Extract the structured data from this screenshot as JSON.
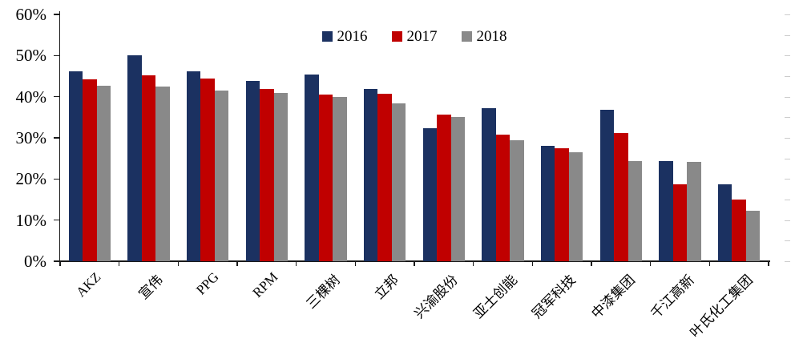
{
  "chart_data": {
    "type": "bar",
    "title": "",
    "xlabel": "",
    "ylabel": "",
    "categories": [
      "AKZ",
      "宣伟",
      "PPG",
      "RPM",
      "三棵树",
      "立邦",
      "兴渝股份",
      "亚士创能",
      "冠军科技",
      "中漆集团",
      "千江高新",
      "叶氏化工集团"
    ],
    "series": [
      {
        "name": "2016",
        "color": "#1B3161",
        "values": [
          46.1,
          50.0,
          46.2,
          43.9,
          45.4,
          41.9,
          32.3,
          37.2,
          28.1,
          36.8,
          24.4,
          18.7
        ]
      },
      {
        "name": "2017",
        "color": "#C00000",
        "values": [
          44.2,
          45.2,
          44.4,
          41.8,
          40.5,
          40.7,
          35.6,
          30.7,
          27.5,
          31.1,
          18.7,
          15.0
        ]
      },
      {
        "name": "2018",
        "color": "#898989",
        "values": [
          42.6,
          42.4,
          41.5,
          41.0,
          39.9,
          38.3,
          35.0,
          29.5,
          26.4,
          24.4,
          24.2,
          12.3
        ]
      }
    ],
    "ylim": [
      0,
      60
    ],
    "y_tick_step": 10,
    "y_ticks": [
      "0%",
      "10%",
      "20%",
      "30%",
      "40%",
      "50%",
      "60%"
    ],
    "y_minor_tick_step": 5,
    "grid": false,
    "legend_position": "top-center",
    "legend_labels": [
      "2016",
      "2017",
      "2018"
    ]
  },
  "colors": {
    "axis": "#1a1a1a",
    "background": "#ffffff",
    "minor_tick": "#cccccc"
  }
}
